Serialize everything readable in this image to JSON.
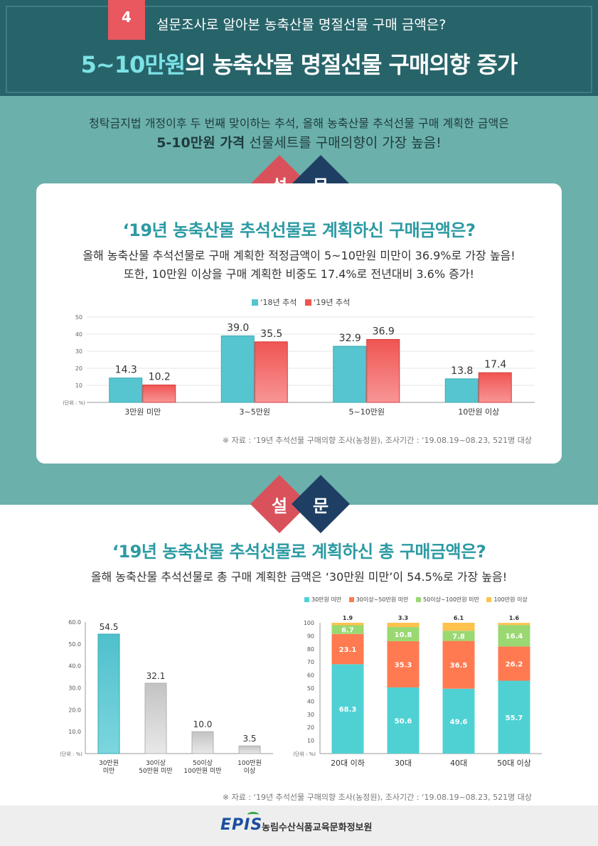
{
  "header": {
    "badge_number": "4",
    "subtitle": "설문조사로 알아본 농축산물 명절선물 구매 금액은?",
    "title_highlight": "5~10만원",
    "title_rest": "의 농축산물 명절선물 구매의향 증가"
  },
  "intro": {
    "line1": "청탁금지법 개정이후 두 번째 맞이하는 추석, 올해 농축산물 추석선물 구매 계획한 금액은",
    "line2_bold": "5-10만원 가격",
    "line2_rest": " 선물세트를 구매의향이 가장 높음!"
  },
  "survey_label": {
    "left": "설",
    "right": "문"
  },
  "section1": {
    "title": "‘19년 농축산물 추석선물로 계획하신 구매금액은?",
    "desc1": "올해 농축산물 추석선물로 구매 계획한 적정금액이 5~10만원 미만이 36.9%로 가장 높음!",
    "desc2": "또한, 10만원 이상을 구매 계획한 비중도 17.4%로 전년대비 3.6% 증가!",
    "source": "※ 자료 : ‘19년 추석선물 구매의향 조사(농정원), 조사기간 : ‘19.08.19~08.23, 521명 대상"
  },
  "section2": {
    "title": "‘19년 농축산물 추석선물로 계획하신 총 구매금액은?",
    "desc": "올해 농축산물 추석선물로 총 구매 계획한 금액은 ‘30만원 미만’이 54.5%로 가장 높음!",
    "source": "※ 자료 : ‘19년 추석선물 구매의향 조사(농정원), 조사기간 : ‘19.08.19~08.23, 521명 대상"
  },
  "footer": {
    "logo": "EPIS",
    "org": "농림수산식품교육문화정보원"
  },
  "colors": {
    "header_bg": "#27646a",
    "teal_bg": "#6bb0ab",
    "title_teal": "#2c9aa3",
    "series_2018": "#56c5d0",
    "series_2019": "#ef5552",
    "stack_under30": "#4fd1d4",
    "stack_30to50": "#ff7a50",
    "stack_50to100": "#9ad872",
    "stack_over100": "#ffc24d"
  },
  "chart_data": [
    {
      "type": "bar",
      "unit_label": "(단위 : %)",
      "categories": [
        "3만원 미만",
        "3~5만원",
        "5~10만원",
        "10만원 이상"
      ],
      "series": [
        {
          "name": "‘18년 추석",
          "values": [
            14.3,
            39.0,
            32.9,
            13.8
          ]
        },
        {
          "name": "‘19년 추석",
          "values": [
            10.2,
            35.5,
            36.9,
            17.4
          ]
        }
      ],
      "ylim": [
        0,
        50
      ],
      "yticks": [
        10,
        20,
        30,
        40,
        50
      ],
      "legend": "top-center"
    },
    {
      "type": "bar",
      "unit_label": "(단위 : %)",
      "categories": [
        [
          "30만원",
          "미만"
        ],
        [
          "30이상",
          "50만원 미만"
        ],
        [
          "50이상",
          "100만원 미만"
        ],
        [
          "100만원",
          "이상"
        ]
      ],
      "values": [
        54.5,
        32.1,
        10.0,
        3.5
      ],
      "ylim": [
        0,
        60
      ],
      "yticks": [
        "10.0",
        "20.0",
        "30.0",
        "40.0",
        "50.0",
        "60.0"
      ]
    },
    {
      "type": "bar",
      "stacked": true,
      "unit_label": "(단위 : %)",
      "categories": [
        "20대 이하",
        "30대",
        "40대",
        "50대 이상"
      ],
      "series": [
        {
          "name": "30만원 미만",
          "values": [
            68.3,
            50.6,
            49.6,
            55.7
          ]
        },
        {
          "name": "30이상~50만원 미만",
          "values": [
            23.1,
            35.3,
            36.5,
            26.2
          ]
        },
        {
          "name": "50이상~100만원 미만",
          "values": [
            6.7,
            10.8,
            7.8,
            16.4
          ]
        },
        {
          "name": "100만원 이상",
          "values": [
            1.9,
            3.3,
            6.1,
            1.6
          ]
        }
      ],
      "ylim": [
        0,
        100
      ],
      "yticks": [
        10,
        20,
        30,
        40,
        50,
        60,
        70,
        80,
        90,
        100
      ],
      "legend": "top"
    }
  ]
}
